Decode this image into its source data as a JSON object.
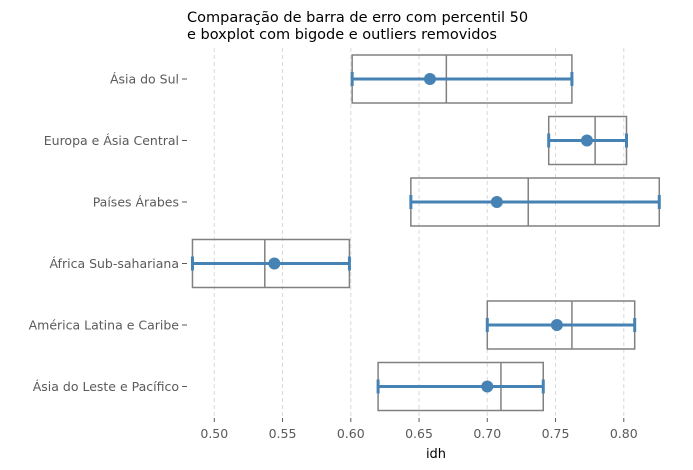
{
  "chart_data": {
    "type": "box",
    "title": [
      "Comparação de barra de erro com percentil 50",
      "e boxplot com bigode e outliers removidos"
    ],
    "xlabel": "idh",
    "ylabel": "",
    "xlim": [
      0.48,
      0.828
    ],
    "xticks": [
      "0.50",
      "0.55",
      "0.60",
      "0.65",
      "0.70",
      "0.75",
      "0.80"
    ],
    "xtick_values": [
      0.5,
      0.55,
      0.6,
      0.65,
      0.7,
      0.75,
      0.8
    ],
    "grid": "x-dashed",
    "categories": [
      "Ásia do Sul",
      "Europa e Ásia Central",
      "Países Árabes",
      "África Sub-sahariana",
      "América Latina e Caribe",
      "Ásia do Leste e Pacífico"
    ],
    "boxes": [
      {
        "q1": 0.601,
        "median": 0.67,
        "q3": 0.762
      },
      {
        "q1": 0.745,
        "median": 0.779,
        "q3": 0.802
      },
      {
        "q1": 0.644,
        "median": 0.73,
        "q3": 0.826
      },
      {
        "q1": 0.484,
        "median": 0.537,
        "q3": 0.599
      },
      {
        "q1": 0.7,
        "median": 0.762,
        "q3": 0.808
      },
      {
        "q1": 0.62,
        "median": 0.71,
        "q3": 0.741
      }
    ],
    "errorbars": [
      {
        "point": 0.658,
        "low": 0.601,
        "high": 0.762
      },
      {
        "point": 0.773,
        "low": 0.745,
        "high": 0.802
      },
      {
        "point": 0.707,
        "low": 0.644,
        "high": 0.826
      },
      {
        "point": 0.544,
        "low": 0.484,
        "high": 0.599
      },
      {
        "point": 0.751,
        "low": 0.7,
        "high": 0.808
      },
      {
        "point": 0.7,
        "low": 0.62,
        "high": 0.741
      }
    ],
    "colors": {
      "box": "#808080",
      "errorbar": "#4682b4",
      "grid": "#d9d9d9"
    }
  }
}
